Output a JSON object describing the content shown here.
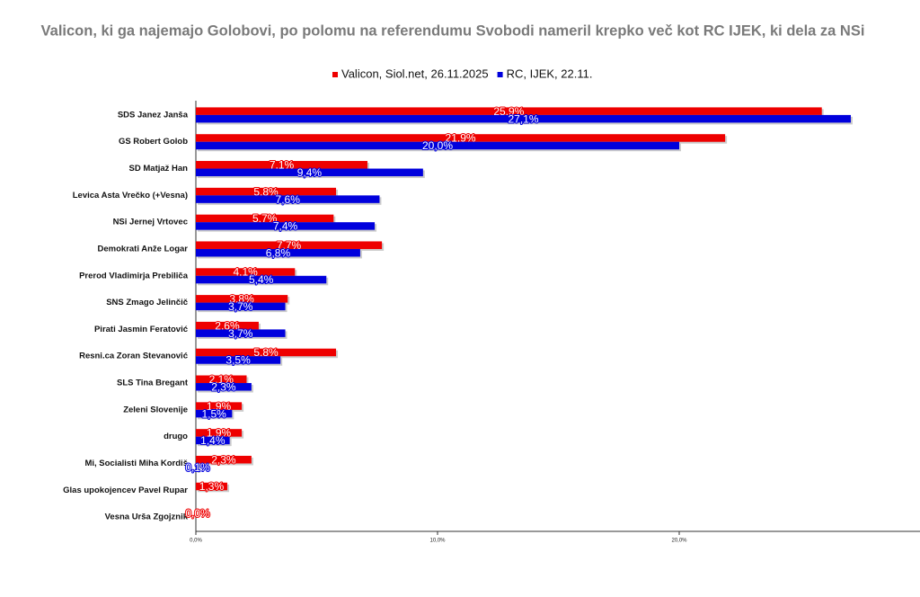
{
  "chart_data": {
    "type": "bar",
    "orientation": "horizontal",
    "title": "Valicon, ki ga najemajo Golobovi, po polomu na referendumu Svobodi nameril krepko več kot RC IJEK, ki dela za NSi",
    "categories": [
      "SDS Janez Janša",
      "GS Robert Golob",
      "SD Matjaž Han",
      "Levica Asta Vrečko (+Vesna)",
      "NSi Jernej Vrtovec",
      "Demokrati Anže Logar",
      "Prerod Vladimirja Prebiliča",
      "SNS Zmago Jelinčič",
      "Pirati Jasmin Feratović",
      "Resni.ca Zoran Stevanović",
      "SLS Tina Bregant",
      "Zeleni Slovenije",
      "drugo",
      "Mi, Socialisti Miha Kordiš",
      "Glas upokojencev Pavel Rupar",
      "Vesna Urša Zgojznik"
    ],
    "series": [
      {
        "name": "Valicon, Siol.net, 26.11.2025",
        "color": "#ee0000",
        "values": [
          25.9,
          21.9,
          7.1,
          5.8,
          5.7,
          7.7,
          4.1,
          3.8,
          2.6,
          5.8,
          2.1,
          1.9,
          1.9,
          2.3,
          1.3,
          0.0
        ],
        "value_labels": [
          "25,9%",
          "21,9%",
          "7,1%",
          "5,8%",
          "5,7%",
          "7,7%",
          "4,1%",
          "3,8%",
          "2,6%",
          "5,8%",
          "2,1%",
          "1,9%",
          "1,9%",
          "2,3%",
          "1,3%",
          "0,0%"
        ]
      },
      {
        "name": "RC, IJEK, 22.11.",
        "color": "#0000dd",
        "values": [
          27.1,
          20.0,
          9.4,
          7.6,
          7.4,
          6.8,
          5.4,
          3.7,
          3.7,
          3.5,
          2.3,
          1.5,
          1.4,
          0.1,
          null,
          null
        ],
        "value_labels": [
          "27,1%",
          "20,0%",
          "9,4%",
          "7,6%",
          "7,4%",
          "6,8%",
          "5,4%",
          "3,7%",
          "3,7%",
          "3,5%",
          "2,3%",
          "1,5%",
          "1,4%",
          "0,1%",
          null,
          null
        ]
      }
    ],
    "xlim": [
      0,
      30
    ],
    "xticks": [
      {
        "value": 0,
        "label": "0,0%"
      },
      {
        "value": 10,
        "label": "10,0%"
      },
      {
        "value": 20,
        "label": "20,0%"
      }
    ],
    "legend": "top"
  }
}
